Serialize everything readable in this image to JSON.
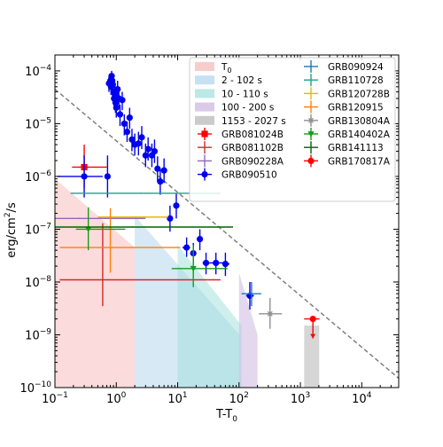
{
  "chart_data": {
    "type": "scatter",
    "xlabel": "T-T0",
    "ylabel": "erg/cm2/s",
    "xscale": "log",
    "yscale": "log",
    "xlim": [
      0.1,
      40000
    ],
    "ylim": [
      1e-10,
      0.0002
    ],
    "grid": false,
    "legend_position": "top-right",
    "x_tick_labels": [
      {
        "value": 0.1,
        "base": "10",
        "exp": "−1"
      },
      {
        "value": 1,
        "base": "10",
        "exp": "0"
      },
      {
        "value": 10,
        "base": "10",
        "exp": "1"
      },
      {
        "value": 100,
        "base": "10",
        "exp": "2"
      },
      {
        "value": 1000,
        "base": "10",
        "exp": "3"
      },
      {
        "value": 10000,
        "base": "10",
        "exp": "4"
      }
    ],
    "y_tick_labels": [
      {
        "value": 1e-10,
        "base": "10",
        "exp": "−10"
      },
      {
        "value": 1e-09,
        "base": "10",
        "exp": "−9"
      },
      {
        "value": 1e-08,
        "base": "10",
        "exp": "−8"
      },
      {
        "value": 1e-07,
        "base": "10",
        "exp": "−7"
      },
      {
        "value": 1e-06,
        "base": "10",
        "exp": "−6"
      },
      {
        "value": 1e-05,
        "base": "10",
        "exp": "−5"
      },
      {
        "value": 0.0001,
        "base": "10",
        "exp": "−4"
      }
    ],
    "reference_line": {
      "style": "dashed",
      "color": "#808080",
      "points": [
        [
          0.1,
          4.5e-05
        ],
        [
          40000,
          1.5e-10
        ]
      ]
    },
    "time_bands": [
      {
        "label": "T",
        "label_sub": "0",
        "x": [
          0.1,
          2
        ],
        "y_top": [
          9e-07,
          4.5e-08
        ],
        "color": "#f6b0b0",
        "opacity": 0.45
      },
      {
        "label": "2 - 102 s",
        "x": [
          2,
          102
        ],
        "y_top": [
          1.8e-07,
          1e-09
        ],
        "color": "#aed4ec",
        "opacity": 0.5
      },
      {
        "label": "10 - 110 s",
        "x": [
          10,
          110
        ],
        "y_top": [
          5e-08,
          1.5e-09
        ],
        "color": "#9fe0dc",
        "opacity": 0.5
      },
      {
        "label": "100 - 200 s",
        "x": [
          100,
          200
        ],
        "y_top": [
          1.5e-08,
          1e-09
        ],
        "color": "#ccb8e0",
        "opacity": 0.55
      },
      {
        "label": "1153 - 2027 s",
        "x": [
          1153,
          2027
        ],
        "y_top": [
          1.5e-09,
          1.5e-09
        ],
        "color": "#c8c8c8",
        "opacity": 0.75
      }
    ],
    "series": [
      {
        "name": "GRB081024B",
        "color": "#ff0000",
        "marker": "square",
        "points": [
          {
            "x": 0.3,
            "y": 1.5e-06,
            "xerr": [
              0.19,
              0.7
            ],
            "yerr": [
              6e-07,
              4e-06
            ]
          }
        ]
      },
      {
        "name": "GRB081102B",
        "color": "#d62728",
        "marker": "plus",
        "points": [
          {
            "x": 0.6,
            "y": 1.1e-08,
            "xerr": [
              0.12,
              50
            ],
            "yerr": [
              3.5e-09,
              1.3e-07
            ]
          }
        ]
      },
      {
        "name": "GRB090228A",
        "color": "#9467bd",
        "marker": "plus",
        "points": [
          {
            "x": 0.25,
            "y": 1.6e-07,
            "xerr": [
              0.1,
              3
            ],
            "yerr": [
              1.6e-07,
              1.6e-07
            ]
          }
        ]
      },
      {
        "name": "GRB090510",
        "color": "#0000ee",
        "marker": "circle",
        "points": [
          {
            "x": 0.3,
            "y": 1e-06,
            "xerr": [
              0.11,
              0.6
            ],
            "yerr": [
              4e-07,
              2.5e-06
            ]
          },
          {
            "x": 0.72,
            "y": 1e-06,
            "xerr": [
              0.65,
              0.8
            ],
            "yerr": [
              4e-07,
              2.5e-06
            ]
          },
          {
            "x": 0.76,
            "y": 5.8e-05,
            "yerr": [
              4e-05,
              8e-05
            ]
          },
          {
            "x": 0.8,
            "y": 6.5e-05,
            "yerr": [
              5e-05,
              8e-05
            ]
          },
          {
            "x": 0.82,
            "y": 5e-05,
            "yerr": [
              3.5e-05,
              7e-05
            ]
          },
          {
            "x": 0.84,
            "y": 8e-05,
            "yerr": [
              6e-05,
              0.0001
            ]
          },
          {
            "x": 0.86,
            "y": 6.5e-05,
            "yerr": [
              5e-05,
              8e-05
            ]
          },
          {
            "x": 0.88,
            "y": 5.5e-05,
            "yerr": [
              4e-05,
              7e-05
            ]
          },
          {
            "x": 0.9,
            "y": 4e-05,
            "yerr": [
              2.8e-05,
              5.5e-05
            ]
          },
          {
            "x": 0.92,
            "y": 3e-05,
            "yerr": [
              2e-05,
              4.5e-05
            ]
          },
          {
            "x": 0.95,
            "y": 3.5e-05,
            "yerr": [
              2.3e-05,
              5e-05
            ]
          },
          {
            "x": 0.97,
            "y": 2.5e-05,
            "yerr": [
              1.6e-05,
              3.8e-05
            ]
          },
          {
            "x": 1.0,
            "y": 2e-05,
            "yerr": [
              1.3e-05,
              3e-05
            ]
          },
          {
            "x": 1.05,
            "y": 4.5e-05,
            "yerr": [
              3e-05,
              6.5e-05
            ]
          },
          {
            "x": 1.1,
            "y": 3e-05,
            "yerr": [
              2e-05,
              4.5e-05
            ]
          },
          {
            "x": 1.15,
            "y": 1.5e-05,
            "yerr": [
              9e-06,
              2.3e-05
            ]
          },
          {
            "x": 1.25,
            "y": 2.8e-05,
            "yerr": [
              1.8e-05,
              4e-05
            ]
          },
          {
            "x": 1.35,
            "y": 1e-05,
            "yerr": [
              6e-06,
              1.5e-05
            ]
          },
          {
            "x": 1.5,
            "y": 7e-06,
            "yerr": [
              4.5e-06,
              1.1e-05
            ]
          },
          {
            "x": 1.65,
            "y": 1.3e-05,
            "yerr": [
              8e-06,
              2e-05
            ]
          },
          {
            "x": 1.8,
            "y": 5e-06,
            "yerr": [
              3e-06,
              8e-06
            ]
          },
          {
            "x": 2.0,
            "y": 4e-06,
            "yerr": [
              2.5e-06,
              6.5e-06
            ]
          },
          {
            "x": 2.3,
            "y": 4.2e-06,
            "yerr": [
              2.5e-06,
              7e-06
            ]
          },
          {
            "x": 2.6,
            "y": 5.5e-06,
            "yerr": [
              3.3e-06,
              9e-06
            ]
          },
          {
            "x": 3.0,
            "y": 2.5e-06,
            "yerr": [
              1.5e-06,
              4.2e-06
            ]
          },
          {
            "x": 3.3,
            "y": 3.3e-06,
            "yerr": [
              2e-06,
              5.5e-06
            ]
          },
          {
            "x": 3.8,
            "y": 2.5e-06,
            "yerr": [
              1.5e-06,
              4.2e-06
            ]
          },
          {
            "x": 4.2,
            "y": 3e-06,
            "yerr": [
              1.8e-06,
              5e-06
            ]
          },
          {
            "x": 4.7,
            "y": 1.4e-06,
            "yerr": [
              8e-07,
              2.4e-06
            ]
          },
          {
            "x": 5.2,
            "y": 8e-07,
            "yerr": [
              4.5e-07,
              1.4e-06
            ]
          },
          {
            "x": 6.0,
            "y": 1.3e-06,
            "yerr": [
              7.5e-07,
              2.2e-06
            ]
          },
          {
            "x": 7.5,
            "y": 1.6e-07,
            "yerr": [
              9e-08,
              2.8e-07
            ]
          },
          {
            "x": 9.5,
            "y": 2.8e-07,
            "yerr": [
              1.6e-07,
              4.8e-07
            ]
          },
          {
            "x": 14,
            "y": 4.5e-08,
            "xerr": [
              12,
              16
            ],
            "yerr": [
              3e-08,
              7e-08
            ]
          },
          {
            "x": 18,
            "y": 3.5e-08,
            "xerr": [
              16,
              20
            ],
            "yerr": [
              2.2e-08,
              5.5e-08
            ]
          },
          {
            "x": 23,
            "y": 6.5e-08,
            "xerr": [
              21,
              25.5
            ],
            "yerr": [
              4e-08,
              1e-07
            ]
          },
          {
            "x": 29,
            "y": 2.3e-08,
            "xerr": [
              25.5,
              33
            ],
            "yerr": [
              1.4e-08,
              3.6e-08
            ]
          },
          {
            "x": 42,
            "y": 2.3e-08,
            "xerr": [
              33,
              55
            ],
            "yerr": [
              1.4e-08,
              3.6e-08
            ]
          },
          {
            "x": 60,
            "y": 2.2e-08,
            "xerr": [
              55,
              70
            ],
            "yerr": [
              1.3e-08,
              3.6e-08
            ]
          },
          {
            "x": 150,
            "y": 5.5e-09,
            "xerr": [
              130,
              175
            ],
            "yerr": [
              3e-09,
              1e-08
            ]
          }
        ]
      },
      {
        "name": "GRB090924",
        "color": "#1f77b4",
        "marker": "plus",
        "points": [
          {
            "x": 160,
            "y": 6e-09,
            "xerr": [
              110,
              230
            ],
            "yerr": [
              3.5e-09,
              1e-08
            ]
          }
        ]
      },
      {
        "name": "GRB110728",
        "color": "#17a589",
        "marker": "plus",
        "points": [
          {
            "x": 2.5,
            "y": 4.8e-07,
            "xerr": [
              0.18,
              50
            ],
            "yerr": [
              4.8e-07,
              4.8e-07
            ]
          }
        ]
      },
      {
        "name": "GRB120728B",
        "color": "#e6b800",
        "marker": "plus",
        "points": [
          {
            "x": 1.0,
            "y": 1.7e-07,
            "xerr": [
              0.5,
              7
            ],
            "yerr": [
              1.7e-07,
              1.7e-07
            ]
          }
        ]
      },
      {
        "name": "GRB120915",
        "color": "#ff7f0e",
        "marker": "plus",
        "points": [
          {
            "x": 0.8,
            "y": 4.5e-08,
            "xerr": [
              0.12,
              11
            ],
            "yerr": [
              1.5e-08,
              2.5e-07
            ]
          }
        ]
      },
      {
        "name": "GRB130804A",
        "color": "#909090",
        "marker": "star",
        "points": [
          {
            "x": 320,
            "y": 2.5e-09,
            "xerr": [
              210,
              500
            ],
            "yerr": [
              1.3e-09,
              5e-09
            ]
          }
        ]
      },
      {
        "name": "GRB140402A",
        "color": "#1a9b1a",
        "marker": "triangle-down",
        "points": [
          {
            "x": 0.35,
            "y": 1e-07,
            "xerr": [
              0.22,
              1.4
            ],
            "yerr": [
              4e-08,
              2.6e-07
            ]
          },
          {
            "x": 18,
            "y": 1.8e-08,
            "xerr": [
              8,
              65
            ],
            "yerr": [
              8e-09,
              5e-08
            ]
          }
        ]
      },
      {
        "name": "GRB141113",
        "color": "#006400",
        "marker": "plus",
        "points": [
          {
            "x": 1.8,
            "y": 1.1e-07,
            "xerr": [
              0.1,
              80
            ],
            "yerr": [
              1.1e-07,
              1.1e-07
            ]
          }
        ]
      },
      {
        "name": "GRB170817A",
        "color": "#ff0000",
        "marker": "circle",
        "upper_limit": true,
        "points": [
          {
            "x": 1600,
            "y": 2e-09,
            "xerr": [
              1150,
              2050
            ]
          }
        ]
      }
    ]
  }
}
